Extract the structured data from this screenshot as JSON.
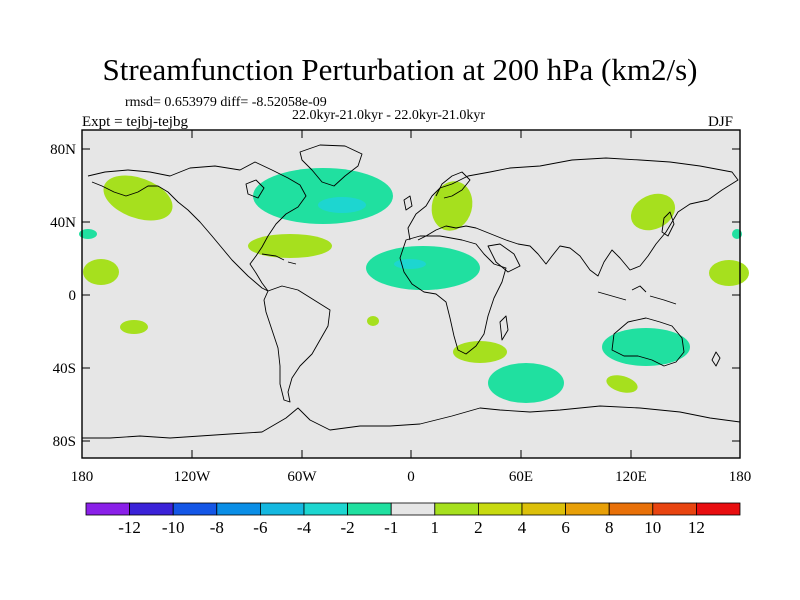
{
  "title": "Streamfunction Perturbation at 200 hPa (km2/s)",
  "stats": "rmsd= 0.653979 diff= -8.52058e-09",
  "period": "22.0kyr-21.0kyr - 22.0kyr-21.0kyr",
  "expt": "Expt = tejbj-tejbg",
  "season": "DJF",
  "lat_labels": [
    "80N",
    "40N",
    "0",
    "40S",
    "80S"
  ],
  "lon_labels": [
    "180",
    "120W",
    "60W",
    "0",
    "60E",
    "120E",
    "180"
  ],
  "colorbar": {
    "colors": [
      "#8a20e8",
      "#3b22d8",
      "#1456e6",
      "#0a8ee6",
      "#15b8e0",
      "#1dd6d0",
      "#20e0a0",
      "#e6e6e6",
      "#a6e01e",
      "#c8da10",
      "#dcc00a",
      "#e8a008",
      "#e87008",
      "#e84410",
      "#e80e10"
    ],
    "labels": [
      "-12",
      "-10",
      "-8",
      "-6",
      "-4",
      "-2",
      "-1",
      "1",
      "2",
      "4",
      "6",
      "8",
      "10",
      "12"
    ]
  },
  "colors": {
    "ocean": "#e6e6e6",
    "pos1": "#a6e01e",
    "neg1": "#20e0a0",
    "neg2": "#1dd6d0"
  }
}
